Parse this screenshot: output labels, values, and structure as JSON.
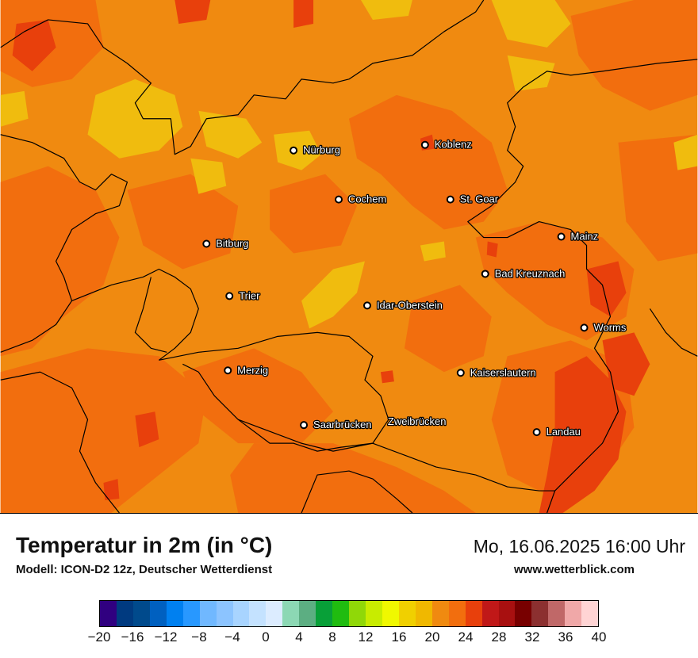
{
  "map": {
    "colors": {
      "t20_22": "#f08a10",
      "t22_24": "#f26e0e",
      "t24_26": "#e8400c",
      "t18_20": "#f0bc0e",
      "land_base": "#f08a10"
    },
    "cities": [
      {
        "name": "Nürburg"
      },
      {
        "name": "Koblenz"
      },
      {
        "name": "Cochem"
      },
      {
        "name": "St. Goar"
      },
      {
        "name": "Bitburg"
      },
      {
        "name": "Mainz"
      },
      {
        "name": "Bad Kreuznach"
      },
      {
        "name": "Trier"
      },
      {
        "name": "Idar-Oberstein"
      },
      {
        "name": "Worms"
      },
      {
        "name": "Merzig"
      },
      {
        "name": "Kaiserslautern"
      },
      {
        "name": "Saarbrücken"
      },
      {
        "name": "Zweibrücken"
      },
      {
        "name": "Landau"
      }
    ]
  },
  "footer": {
    "title": "Temperatur in 2m (in °C)",
    "model": "Modell: ICON-D2 12z, Deutscher Wetterdienst",
    "datetime": "Mo, 16.06.2025 16:00 Uhr",
    "website": "www.wetterblick.com"
  },
  "legend": {
    "colors": [
      "#300080",
      "#003a80",
      "#004a8c",
      "#0060c0",
      "#0080f0",
      "#2898ff",
      "#70b8ff",
      "#8cc4ff",
      "#a8d4ff",
      "#c4e2ff",
      "#dcecff",
      "#8cd8b4",
      "#5cae82",
      "#08a038",
      "#20bc10",
      "#90d808",
      "#c8ec00",
      "#f0f800",
      "#f0d000",
      "#f0b800",
      "#f08a10",
      "#f26e0e",
      "#e8400c",
      "#c01818",
      "#a81010",
      "#780000",
      "#8c3030",
      "#c06868",
      "#f0a8a8",
      "#ffd4d4"
    ],
    "ticks": [
      "−20",
      "−16",
      "−12",
      "−8",
      "−4",
      "0",
      "4",
      "8",
      "12",
      "16",
      "20",
      "24",
      "28",
      "32",
      "36",
      "40"
    ]
  }
}
